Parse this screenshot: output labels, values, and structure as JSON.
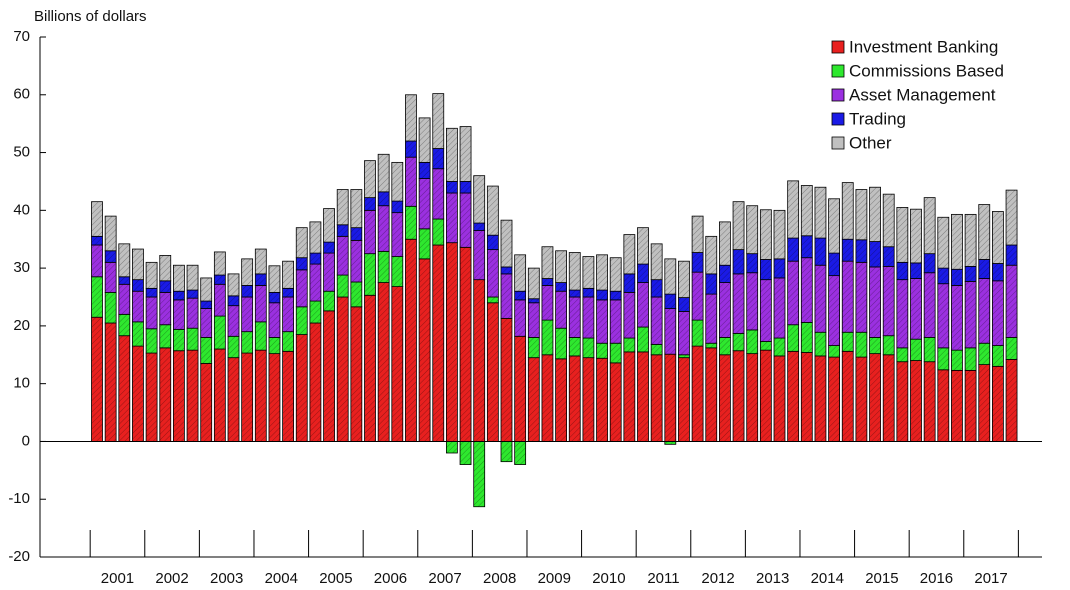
{
  "chart_data": {
    "type": "stacked_bar",
    "y_label": "Billions of dollars",
    "categories": [
      "2001",
      null,
      null,
      null,
      "2002",
      null,
      null,
      null,
      "2003",
      null,
      null,
      null,
      "2004",
      null,
      null,
      null,
      "2005",
      null,
      null,
      null,
      "2006",
      null,
      null,
      null,
      "2007",
      null,
      null,
      null,
      "2008",
      null,
      null,
      null,
      "2009",
      null,
      null,
      null,
      "2010",
      null,
      null,
      null,
      "2011",
      null,
      null,
      null,
      "2012",
      null,
      null,
      null,
      "2013",
      null,
      null,
      null,
      "2014",
      null,
      null,
      null,
      "2015",
      null,
      null,
      null,
      "2016",
      null,
      null,
      null,
      "2017",
      null,
      null,
      null
    ],
    "series": [
      {
        "name": "Investment Banking",
        "color": "#e8201f",
        "values": [
          21.5,
          20.5,
          18.3,
          16.5,
          15.3,
          16.2,
          15.7,
          15.8,
          13.5,
          16.0,
          14.5,
          15.3,
          15.8,
          15.2,
          15.6,
          18.5,
          20.5,
          22.6,
          25.0,
          23.3,
          25.3,
          27.5,
          26.8,
          35.0,
          31.6,
          34.0,
          34.4,
          33.6,
          28.0,
          24.0,
          21.3,
          18.2,
          14.5,
          15.0,
          14.3,
          14.8,
          14.5,
          14.4,
          13.6,
          15.5,
          15.5,
          15.0,
          15.1,
          14.5,
          16.5,
          16.2,
          15.0,
          15.7,
          15.2,
          15.8,
          14.8,
          15.6,
          15.4,
          14.8,
          14.6,
          15.6,
          14.6,
          15.2,
          15.0,
          13.8,
          14.0,
          13.8,
          12.4,
          12.3,
          12.3,
          13.3,
          13.0,
          14.2
        ]
      },
      {
        "name": "Commissions Based",
        "color": "#2ee82e",
        "values": [
          7.0,
          5.3,
          3.7,
          4.2,
          4.2,
          4.0,
          3.7,
          3.8,
          4.5,
          5.7,
          3.7,
          3.7,
          4.9,
          2.8,
          3.4,
          4.8,
          3.8,
          3.4,
          3.8,
          4.3,
          7.2,
          5.4,
          5.2,
          5.7,
          5.2,
          4.5,
          -2.0,
          -4.0,
          -11.3,
          1.0,
          -3.5,
          -4.0,
          3.5,
          6.0,
          5.3,
          3.2,
          3.4,
          2.6,
          3.4,
          2.4,
          4.3,
          1.8,
          -0.5,
          0.5,
          4.5,
          0.8,
          3.0,
          3.0,
          4.1,
          1.5,
          3.1,
          4.6,
          5.2,
          4.1,
          2.0,
          3.3,
          4.3,
          2.8,
          3.3,
          2.4,
          3.7,
          4.2,
          3.8,
          3.5,
          3.9,
          3.7,
          3.6,
          3.8
        ]
      },
      {
        "name": "Asset Management",
        "color": "#9b30e0",
        "values": [
          5.5,
          5.2,
          5.2,
          5.3,
          5.5,
          5.6,
          5.1,
          5.2,
          5.0,
          5.5,
          5.3,
          6.0,
          6.3,
          6.0,
          6.0,
          6.4,
          6.4,
          6.6,
          6.7,
          7.2,
          7.5,
          7.9,
          7.6,
          8.5,
          8.7,
          8.7,
          8.6,
          9.4,
          8.5,
          8.2,
          7.7,
          6.3,
          6.0,
          6.0,
          6.4,
          7.0,
          7.1,
          7.5,
          7.5,
          7.9,
          7.7,
          8.2,
          7.9,
          7.5,
          8.3,
          8.5,
          9.5,
          10.3,
          9.9,
          10.7,
          10.4,
          11.0,
          11.2,
          11.6,
          12.1,
          12.3,
          12.1,
          12.2,
          12.0,
          11.8,
          10.5,
          11.2,
          11.1,
          11.2,
          11.5,
          11.2,
          11.2,
          12.5
        ]
      },
      {
        "name": "Trading",
        "color": "#1a1ae6",
        "values": [
          1.5,
          2.0,
          1.3,
          2.0,
          1.5,
          2.0,
          1.5,
          1.4,
          1.3,
          1.6,
          1.7,
          2.0,
          2.0,
          1.8,
          1.5,
          2.1,
          1.9,
          1.9,
          2.0,
          2.2,
          2.2,
          2.4,
          2.0,
          2.8,
          2.8,
          3.5,
          2.0,
          2.0,
          1.3,
          2.5,
          1.2,
          1.5,
          0.7,
          1.2,
          1.5,
          1.2,
          1.5,
          1.7,
          1.5,
          3.2,
          3.2,
          3.0,
          2.5,
          2.4,
          3.4,
          3.5,
          3.0,
          4.2,
          3.3,
          3.5,
          3.3,
          4.0,
          3.8,
          4.7,
          3.9,
          3.8,
          3.9,
          4.4,
          3.4,
          3.0,
          2.7,
          3.3,
          2.7,
          2.8,
          2.6,
          3.3,
          3.0,
          3.5
        ]
      },
      {
        "name": "Other",
        "color": "#c0c0c0",
        "values": [
          6.0,
          6.0,
          5.7,
          5.3,
          4.5,
          4.4,
          4.5,
          4.3,
          4.0,
          4.0,
          3.8,
          4.6,
          4.3,
          4.6,
          4.7,
          5.2,
          5.4,
          5.8,
          6.1,
          6.6,
          6.4,
          6.5,
          6.7,
          8.0,
          7.7,
          9.5,
          9.2,
          9.5,
          8.2,
          8.5,
          8.1,
          6.3,
          5.3,
          5.5,
          5.5,
          6.5,
          5.5,
          6.1,
          5.8,
          6.8,
          6.3,
          6.2,
          6.1,
          6.3,
          6.3,
          6.5,
          7.5,
          8.3,
          8.3,
          8.6,
          8.4,
          9.9,
          8.7,
          8.8,
          9.4,
          9.8,
          8.7,
          9.4,
          9.1,
          9.5,
          9.3,
          9.7,
          8.8,
          9.5,
          9.0,
          9.5,
          9.0,
          9.5
        ]
      }
    ],
    "ylim": [
      -20,
      70
    ],
    "yticks": [
      -20,
      -10,
      0,
      10,
      20,
      30,
      40,
      50,
      60,
      70
    ],
    "grid": false,
    "legend": "upper right"
  }
}
